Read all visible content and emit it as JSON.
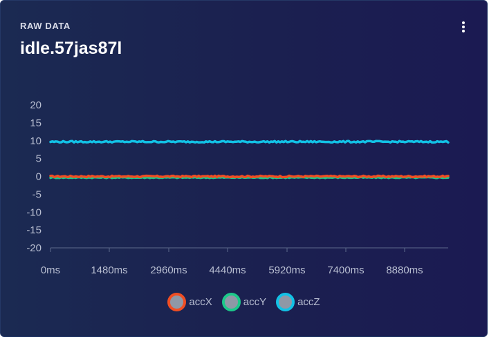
{
  "card": {
    "eyebrow": "RAW DATA",
    "title": "idle.57jas87l",
    "menu_icon": "kebab-menu-icon"
  },
  "chart_data": {
    "type": "line",
    "title": "",
    "xlabel": "",
    "ylabel": "",
    "x_tick_labels": [
      "0ms",
      "1480ms",
      "2960ms",
      "4440ms",
      "5920ms",
      "7400ms",
      "8880ms"
    ],
    "x_range_ms": [
      0,
      9880
    ],
    "y_ticks": [
      20,
      15,
      10,
      5,
      0,
      -5,
      -10,
      -15,
      -20
    ],
    "ylim": [
      -20,
      20
    ],
    "grid": false,
    "legend_position": "bottom",
    "series": [
      {
        "name": "accX",
        "color": "#f04e23",
        "approx_value": 0.0,
        "noise": 0.2
      },
      {
        "name": "accY",
        "color": "#1cc98a",
        "approx_value": -0.3,
        "noise": 0.15
      },
      {
        "name": "accZ",
        "color": "#12c2e6",
        "approx_value": 9.7,
        "noise": 0.2
      }
    ]
  }
}
